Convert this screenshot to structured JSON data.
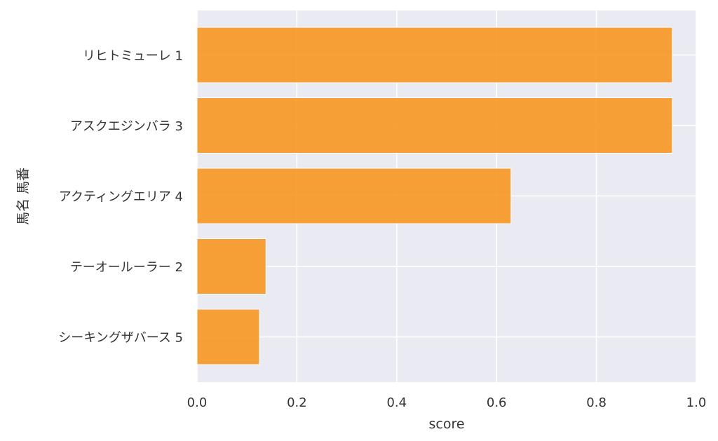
{
  "chart_data": {
    "type": "bar",
    "orientation": "horizontal",
    "title": "",
    "xlabel": "score",
    "ylabel": "馬名 馬番",
    "xlim": [
      0.0,
      1.0
    ],
    "xticks": [
      "0.0",
      "0.2",
      "0.4",
      "0.6",
      "0.8",
      "1.0"
    ],
    "grid": true,
    "categories": [
      "リヒトミューレ 1",
      "アスクエジンバラ 3",
      "アクティングエリア 4",
      "テーオールーラー 2",
      "シーキングザバース 5"
    ],
    "values": [
      0.952,
      0.952,
      0.629,
      0.138,
      0.125
    ],
    "colors": {
      "bar": "#f7941d",
      "plot_background": "#eaeaf2",
      "grid": "#ffffff",
      "text": "#333333"
    }
  }
}
